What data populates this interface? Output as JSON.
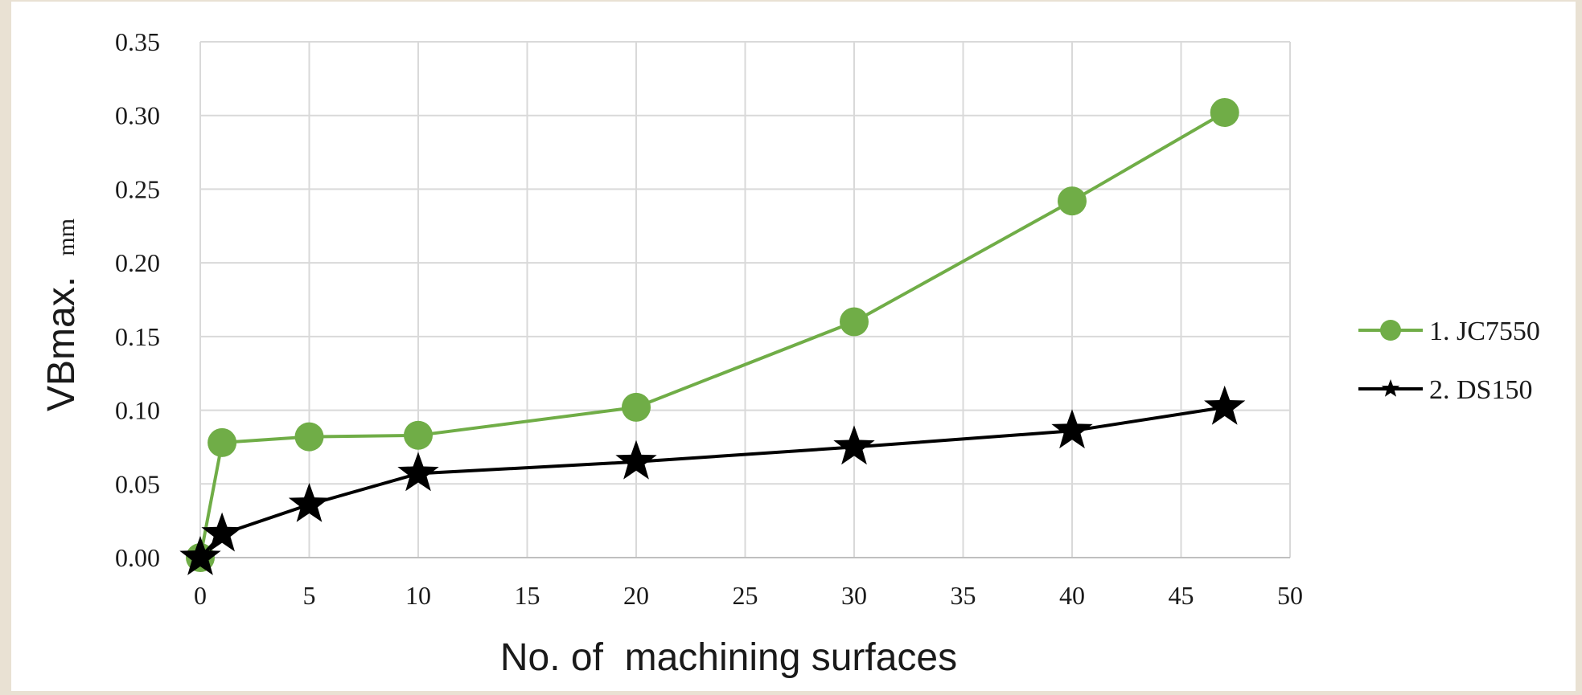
{
  "chart_data": {
    "type": "line",
    "title": "",
    "xlabel": "No. of  machining surfaces",
    "ylabel": "VBmax.",
    "ylabel_unit": "mm",
    "xlim": [
      0,
      50
    ],
    "ylim": [
      0,
      0.35
    ],
    "x_ticks": [
      "0",
      "5",
      "10",
      "15",
      "20",
      "25",
      "30",
      "35",
      "40",
      "45",
      "50"
    ],
    "y_ticks": [
      "0.00",
      "0.05",
      "0.10",
      "0.15",
      "0.20",
      "0.25",
      "0.30",
      "0.35"
    ],
    "grid": true,
    "legend_position": "right",
    "series": [
      {
        "name": "1. JC7550",
        "color": "#70ad47",
        "marker": "circle",
        "x": [
          0,
          1,
          5,
          10,
          20,
          30,
          40,
          47
        ],
        "y": [
          0.0,
          0.078,
          0.082,
          0.083,
          0.102,
          0.16,
          0.242,
          0.302
        ]
      },
      {
        "name": "2. DS150",
        "color": "#000000",
        "marker": "star",
        "x": [
          0,
          1,
          5,
          10,
          20,
          30,
          40,
          47
        ],
        "y": [
          0.0,
          0.016,
          0.036,
          0.057,
          0.065,
          0.075,
          0.086,
          0.102
        ]
      }
    ]
  }
}
